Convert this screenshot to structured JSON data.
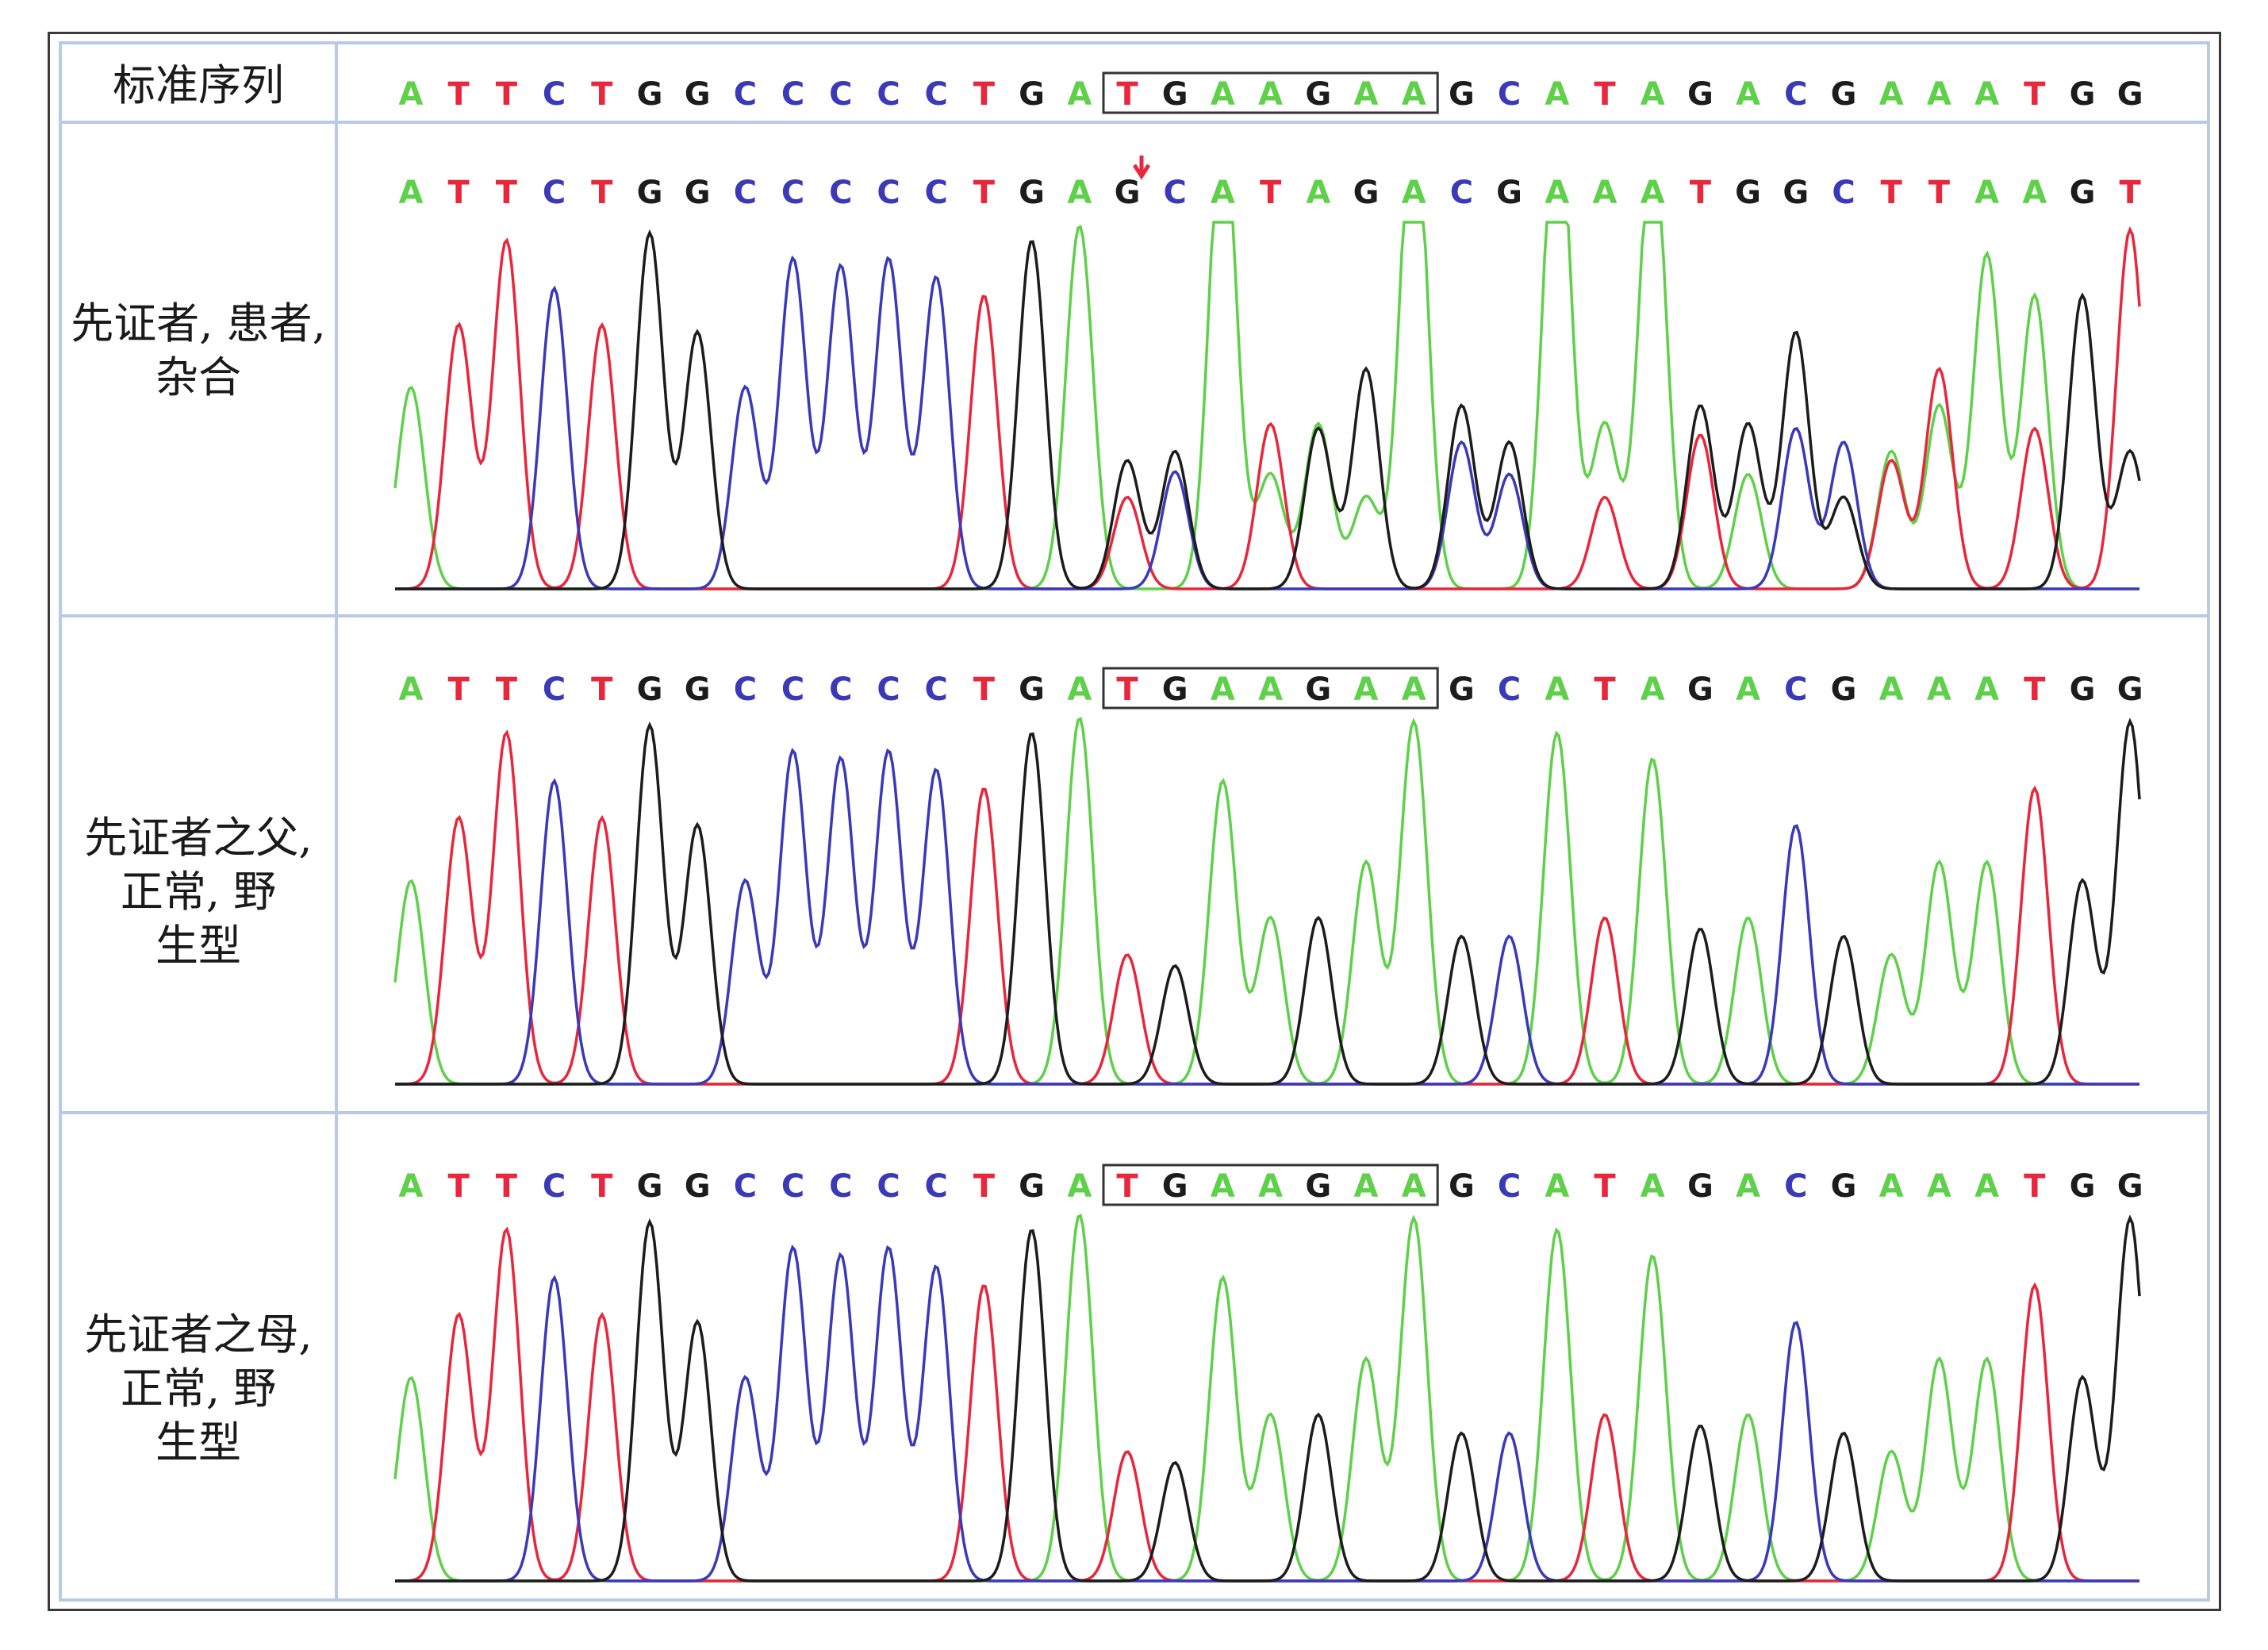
{
  "colors": {
    "A": "#5fd04a",
    "T": "#e8263c",
    "C": "#3a3ab8",
    "G": "#1c1c1c",
    "marker": "#e8263c"
  },
  "rows": [
    {
      "label_lines": [
        "标准序列"
      ],
      "seq": "ATTCTGGCCCCCTGATGAAGAAGCATAGACGAAATGG",
      "box": [
        15,
        21
      ]
    },
    {
      "label_lines": [
        "先证者, 患者,",
        "杂合"
      ],
      "seq": "ATTCTGGCCCCCTGAGCATAGACGAAATGGCTTAAGT",
      "marker_index": 15
    },
    {
      "label_lines": [
        "先证者之父,",
        "正常, 野",
        "生型"
      ],
      "seq": "ATTCTGGCCCCCTGATGAAGAAGCATAGACGAAATGG",
      "box": [
        15,
        21
      ]
    },
    {
      "label_lines": [
        "先证者之母,",
        "正常, 野",
        "生型"
      ],
      "seq": "ATTCTGGCCCCCTGATGAAGAAGCATAGACGAAATGG",
      "box": [
        15,
        21
      ]
    }
  ]
}
